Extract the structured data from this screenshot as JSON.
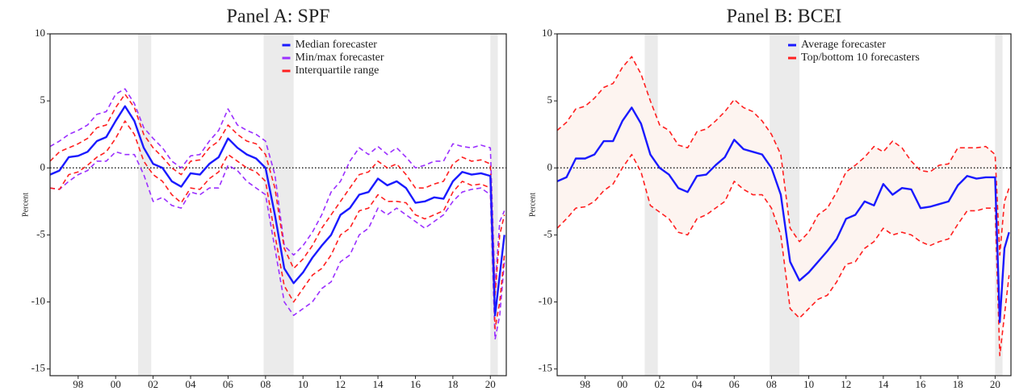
{
  "chart_data": [
    {
      "type": "line",
      "title": "Panel A: SPF",
      "ylabel": "Percent",
      "x": [
        1996.5,
        1997,
        1997.5,
        1998,
        1998.5,
        1999,
        1999.5,
        2000,
        2000.5,
        2001,
        2001.5,
        2002,
        2002.5,
        2003,
        2003.5,
        2004,
        2004.5,
        2005,
        2005.5,
        2006,
        2006.5,
        2007,
        2007.5,
        2008,
        2008.5,
        2009,
        2009.5,
        2010,
        2010.5,
        2011,
        2011.5,
        2012,
        2012.5,
        2013,
        2013.5,
        2014,
        2014.5,
        2015,
        2015.5,
        2016,
        2016.5,
        2017,
        2017.5,
        2018,
        2018.5,
        2019,
        2019.5,
        2020,
        2020.25,
        2020.5,
        2020.75
      ],
      "xlim": [
        1996.5,
        2020.85
      ],
      "xticks": [
        {
          "value": 1998,
          "label": "98"
        },
        {
          "value": 2000,
          "label": "00"
        },
        {
          "value": 2002,
          "label": "02"
        },
        {
          "value": 2004,
          "label": "04"
        },
        {
          "value": 2006,
          "label": "06"
        },
        {
          "value": 2008,
          "label": "08"
        },
        {
          "value": 2010,
          "label": "10"
        },
        {
          "value": 2012,
          "label": "12"
        },
        {
          "value": 2014,
          "label": "14"
        },
        {
          "value": 2016,
          "label": "16"
        },
        {
          "value": 2018,
          "label": "18"
        },
        {
          "value": 2020,
          "label": "20"
        }
      ],
      "ylim": [
        -15.5,
        10
      ],
      "yticks": [
        10,
        5,
        0,
        -5,
        -10,
        -15
      ],
      "reference_line": 0,
      "shaded": [
        [
          2001.2,
          2001.9
        ],
        [
          2007.9,
          2009.5
        ],
        [
          2020.0,
          2020.4
        ]
      ],
      "shade_color": "#ebebeb",
      "legend": "upper center",
      "series": [
        {
          "name": "Median forecaster",
          "color": "#1a1aff",
          "dash": false,
          "values": [
            -0.5,
            -0.2,
            0.8,
            0.9,
            1.2,
            2.0,
            2.3,
            3.5,
            4.6,
            3.5,
            1.5,
            0.3,
            0.0,
            -1.0,
            -1.4,
            -0.4,
            -0.5,
            0.3,
            0.8,
            2.2,
            1.5,
            1.0,
            0.7,
            0.0,
            -3.5,
            -7.5,
            -8.6,
            -7.8,
            -6.7,
            -5.8,
            -5.0,
            -3.5,
            -3.0,
            -2.0,
            -1.8,
            -0.8,
            -1.3,
            -1.0,
            -1.5,
            -2.6,
            -2.5,
            -2.2,
            -2.3,
            -1.0,
            -0.3,
            -0.5,
            -0.4,
            -0.6,
            -11.0,
            -8.0,
            -5.0
          ]
        },
        {
          "name": "Min/max forecaster",
          "color": "#9b30ff",
          "dash": true,
          "lower": [
            -1.5,
            -1.6,
            -1.0,
            -0.5,
            -0.2,
            0.5,
            0.5,
            1.2,
            1.0,
            1.0,
            -0.5,
            -2.5,
            -2.2,
            -2.8,
            -3.0,
            -1.8,
            -2.0,
            -1.5,
            -1.5,
            0.2,
            -0.2,
            -1.0,
            -1.5,
            -2.0,
            -6.0,
            -10.0,
            -11.0,
            -10.5,
            -10.0,
            -9.0,
            -8.5,
            -7.0,
            -6.5,
            -5.0,
            -4.5,
            -3.0,
            -3.5,
            -3.0,
            -3.5,
            -4.0,
            -4.5,
            -4.0,
            -3.5,
            -2.5,
            -1.8,
            -1.6,
            -1.5,
            -2.0,
            -12.8,
            -11.0,
            -7.0
          ],
          "upper": [
            1.6,
            2.0,
            2.5,
            2.8,
            3.2,
            4.0,
            4.2,
            5.5,
            5.9,
            4.8,
            3.0,
            2.2,
            1.5,
            0.5,
            0.0,
            0.9,
            1.0,
            2.0,
            2.8,
            4.4,
            3.2,
            2.8,
            2.5,
            2.0,
            -0.5,
            -5.8,
            -6.5,
            -5.8,
            -4.8,
            -3.5,
            -1.8,
            -1.0,
            0.5,
            1.5,
            1.0,
            1.6,
            1.0,
            1.5,
            0.8,
            0.0,
            0.2,
            0.5,
            0.5,
            1.8,
            1.6,
            1.5,
            1.7,
            1.5,
            -9.0,
            -4.0,
            -3.2
          ]
        },
        {
          "name": "Interquartile range",
          "color": "#ff2020",
          "dash": true,
          "lower": [
            -1.5,
            -1.6,
            -0.5,
            -0.3,
            0.2,
            0.8,
            1.2,
            2.2,
            3.5,
            2.5,
            0.5,
            -0.5,
            -1.0,
            -2.0,
            -2.6,
            -1.5,
            -1.6,
            -0.8,
            -0.3,
            1.0,
            0.5,
            0.0,
            -0.3,
            -1.0,
            -5.0,
            -8.8,
            -10.0,
            -9.0,
            -8.0,
            -7.5,
            -6.5,
            -5.0,
            -4.5,
            -3.2,
            -3.0,
            -2.0,
            -2.5,
            -2.5,
            -2.6,
            -3.5,
            -3.8,
            -3.5,
            -3.2,
            -1.8,
            -1.0,
            -1.3,
            -1.2,
            -1.5,
            -12.0,
            -10.0,
            -6.5
          ],
          "upper": [
            0.5,
            1.2,
            1.5,
            1.8,
            2.2,
            3.0,
            3.2,
            4.5,
            5.5,
            4.5,
            2.5,
            1.5,
            0.8,
            0.0,
            -0.5,
            0.5,
            0.6,
            1.5,
            2.0,
            3.2,
            2.5,
            2.0,
            1.8,
            1.0,
            -1.5,
            -6.0,
            -7.5,
            -6.8,
            -5.8,
            -4.5,
            -3.5,
            -2.5,
            -1.5,
            -0.5,
            -0.3,
            0.5,
            0.0,
            0.3,
            -0.5,
            -1.5,
            -1.5,
            -1.2,
            -1.0,
            0.3,
            0.8,
            0.5,
            0.6,
            0.3,
            -9.5,
            -5.0,
            -3.5
          ]
        }
      ]
    },
    {
      "type": "line",
      "title": "Panel B: BCEI",
      "ylabel": "Percent",
      "x": [
        1996.5,
        1997,
        1997.5,
        1998,
        1998.5,
        1999,
        1999.5,
        2000,
        2000.5,
        2001,
        2001.5,
        2002,
        2002.5,
        2003,
        2003.5,
        2004,
        2004.5,
        2005,
        2005.5,
        2006,
        2006.5,
        2007,
        2007.5,
        2008,
        2008.5,
        2009,
        2009.5,
        2010,
        2010.5,
        2011,
        2011.5,
        2012,
        2012.5,
        2013,
        2013.5,
        2014,
        2014.5,
        2015,
        2015.5,
        2016,
        2016.5,
        2017,
        2017.5,
        2018,
        2018.5,
        2019,
        2019.5,
        2020,
        2020.25,
        2020.5,
        2020.75
      ],
      "xlim": [
        1996.5,
        2020.85
      ],
      "xticks": [
        {
          "value": 1998,
          "label": "98"
        },
        {
          "value": 2000,
          "label": "00"
        },
        {
          "value": 2002,
          "label": "02"
        },
        {
          "value": 2004,
          "label": "04"
        },
        {
          "value": 2006,
          "label": "06"
        },
        {
          "value": 2008,
          "label": "08"
        },
        {
          "value": 2010,
          "label": "10"
        },
        {
          "value": 2012,
          "label": "12"
        },
        {
          "value": 2014,
          "label": "14"
        },
        {
          "value": 2016,
          "label": "16"
        },
        {
          "value": 2018,
          "label": "18"
        },
        {
          "value": 2020,
          "label": "20"
        }
      ],
      "ylim": [
        -15.5,
        10
      ],
      "yticks": [
        10,
        5,
        0,
        -5,
        -10,
        -15
      ],
      "reference_line": 0,
      "shaded": [
        [
          2001.2,
          2001.9
        ],
        [
          2007.9,
          2009.5
        ],
        [
          2020.0,
          2020.4
        ]
      ],
      "shade_color": "#ebebeb",
      "legend": "upper center",
      "series": [
        {
          "name": "Average forecaster",
          "color": "#1a1aff",
          "dash": false,
          "values": [
            -1.0,
            -0.7,
            0.7,
            0.7,
            1.0,
            2.0,
            2.0,
            3.5,
            4.5,
            3.3,
            1.0,
            0.0,
            -0.5,
            -1.5,
            -1.8,
            -0.6,
            -0.5,
            0.2,
            0.8,
            2.1,
            1.4,
            1.2,
            1.0,
            0.0,
            -2.0,
            -7.0,
            -8.4,
            -7.8,
            -7.0,
            -6.2,
            -5.3,
            -3.8,
            -3.5,
            -2.5,
            -2.8,
            -1.2,
            -2.0,
            -1.5,
            -1.6,
            -3.0,
            -2.9,
            -2.7,
            -2.5,
            -1.3,
            -0.6,
            -0.8,
            -0.7,
            -0.7,
            -11.5,
            -6.0,
            -4.8
          ]
        },
        {
          "name": "Top/bottom 10 forecasters",
          "color": "#ff2020",
          "dash": true,
          "band_fill": "#fdf4f0",
          "lower": [
            -4.5,
            -3.8,
            -3.0,
            -2.9,
            -2.5,
            -1.7,
            -1.2,
            0.0,
            1.0,
            -0.3,
            -2.8,
            -3.3,
            -3.8,
            -4.8,
            -5.0,
            -3.8,
            -3.5,
            -3.0,
            -2.5,
            -1.0,
            -1.6,
            -2.0,
            -2.0,
            -3.0,
            -5.0,
            -10.5,
            -11.2,
            -10.5,
            -9.8,
            -9.5,
            -8.5,
            -7.2,
            -7.0,
            -6.0,
            -5.5,
            -4.5,
            -5.0,
            -4.8,
            -5.0,
            -5.5,
            -5.8,
            -5.5,
            -5.3,
            -4.2,
            -3.2,
            -3.2,
            -3.0,
            -3.0,
            -14.0,
            -11.0,
            -8.0
          ],
          "upper": [
            2.8,
            3.4,
            4.4,
            4.6,
            5.2,
            6.0,
            6.3,
            7.5,
            8.3,
            7.0,
            5.0,
            3.2,
            2.8,
            1.7,
            1.5,
            2.7,
            2.9,
            3.5,
            4.2,
            5.1,
            4.5,
            4.2,
            3.5,
            2.5,
            1.0,
            -4.5,
            -5.5,
            -4.8,
            -3.5,
            -3.0,
            -1.8,
            -0.3,
            0.2,
            0.8,
            1.6,
            1.2,
            2.0,
            1.5,
            0.5,
            -0.2,
            -0.3,
            0.2,
            0.3,
            1.5,
            1.5,
            1.5,
            1.6,
            1.0,
            -6.5,
            -2.5,
            -1.5
          ]
        }
      ]
    }
  ]
}
